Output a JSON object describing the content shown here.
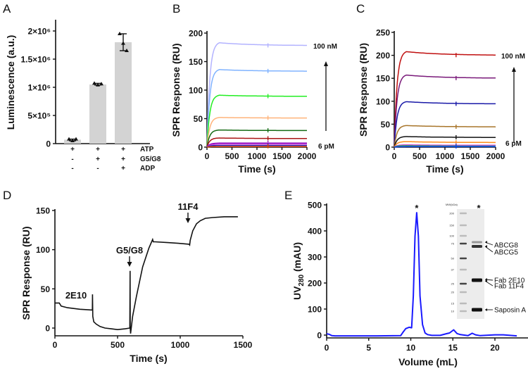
{
  "chart_data": [
    {
      "panel": "A",
      "type": "bar",
      "ylabel": "Luminescence (a.u.)",
      "ylim": [
        0,
        2200000
      ],
      "yticks": [
        0,
        500000,
        1000000,
        1500000,
        2000000
      ],
      "ytick_labels": [
        "0",
        "5×10⁵",
        "1×10⁶",
        "1.5×10⁶",
        "2×10⁶"
      ],
      "categories": [
        "ATP",
        "ATP + G5/G8",
        "ATP + G5/G8 + ADP"
      ],
      "values": [
        70000,
        1050000,
        1800000
      ],
      "points": [
        [
          80000,
          50000,
          80000
        ],
        [
          1070000,
          1040000,
          1060000
        ],
        [
          1950000,
          1780000,
          1650000
        ]
      ],
      "error": [
        [
          50000,
          80000
        ],
        [
          1040000,
          1070000
        ],
        [
          1650000,
          1950000
        ]
      ],
      "bar_color": "#d3d3d3",
      "condition_rows": [
        {
          "name": "ATP",
          "marks": [
            "+",
            "+",
            "+"
          ]
        },
        {
          "name": "G5/G8",
          "marks": [
            "-",
            "+",
            "+"
          ]
        },
        {
          "name": "ADP",
          "marks": [
            "-",
            "-",
            "+"
          ]
        }
      ]
    },
    {
      "panel": "B",
      "type": "line",
      "xlabel": "Time (s)",
      "ylabel": "SPR Response (RU)",
      "xlim": [
        0,
        2000
      ],
      "ylim": [
        0,
        200
      ],
      "xticks": [
        0,
        500,
        1000,
        1500,
        2000
      ],
      "yticks": [
        0,
        50,
        100,
        150,
        200
      ],
      "injection_end": 250,
      "series": [
        {
          "peak": 183,
          "end": 178,
          "color": "#b3b3ff"
        },
        {
          "peak": 136,
          "end": 133,
          "color": "#80b3ff"
        },
        {
          "peak": 91,
          "end": 89,
          "color": "#22ee22"
        },
        {
          "peak": 52,
          "end": 51,
          "color": "#ffb37a"
        },
        {
          "peak": 30,
          "end": 29,
          "color": "#156b15"
        },
        {
          "peak": 16,
          "end": 15,
          "color": "#aa1515"
        },
        {
          "peak": 7,
          "end": 7,
          "color": "#8a00b8"
        },
        {
          "peak": 5,
          "end": 5,
          "color": "#cc44dd"
        },
        {
          "peak": 3,
          "end": 3,
          "color": "#2b2bb0"
        },
        {
          "peak": 1,
          "end": 1,
          "color": "#dd4400"
        }
      ],
      "annotations": {
        "high": "100 nM",
        "low": "6 pM"
      }
    },
    {
      "panel": "C",
      "type": "line",
      "xlabel": "Time (s)",
      "ylabel": "SPR Response (RU)",
      "xlim": [
        0,
        2000
      ],
      "ylim": [
        0,
        250
      ],
      "xticks": [
        0,
        500,
        1000,
        1500,
        2000
      ],
      "yticks": [
        0,
        50,
        100,
        150,
        200,
        250
      ],
      "injection_end": 240,
      "series": [
        {
          "peak": 208,
          "end": 200,
          "color": "#c01010"
        },
        {
          "peak": 157,
          "end": 150,
          "color": "#7a1a7a"
        },
        {
          "peak": 99,
          "end": 94,
          "color": "#1a1aa8"
        },
        {
          "peak": 47,
          "end": 44,
          "color": "#a8752a"
        },
        {
          "peak": 23,
          "end": 21,
          "color": "#111111"
        },
        {
          "peak": 12,
          "end": 10,
          "color": "#ff8c1a"
        },
        {
          "peak": 5,
          "end": 4,
          "color": "#cc55dd"
        },
        {
          "peak": 3,
          "end": 2,
          "color": "#22aa44"
        },
        {
          "peak": 1,
          "end": 1,
          "color": "#1040ee"
        }
      ],
      "annotations": {
        "high": "100 nM",
        "low": "6 pM"
      }
    },
    {
      "panel": "D",
      "type": "line",
      "xlabel": "Time (s)",
      "ylabel": "SPR Response (RU)",
      "xlim": [
        0,
        1500
      ],
      "ylim": [
        -10,
        150
      ],
      "xticks": [
        0,
        500,
        1000,
        1500
      ],
      "yticks": [
        0,
        50,
        100,
        150
      ],
      "series": [
        {
          "color": "#111111",
          "x": [
            0,
            35,
            50,
            100,
            200,
            299,
            300,
            302,
            310,
            330,
            360,
            400,
            450,
            500,
            560,
            598,
            600,
            601,
            604,
            620,
            650,
            700,
            750,
            780,
            785,
            800,
            900,
            1000,
            1070,
            1075,
            1080,
            1100,
            1130,
            1160,
            1200,
            1260,
            1350,
            1460
          ],
          "y": [
            32,
            32,
            28,
            26,
            24,
            23,
            43,
            15,
            8,
            5,
            2,
            0,
            -1,
            -2,
            -1,
            0,
            73,
            0,
            -7,
            15,
            40,
            78,
            102,
            113,
            110,
            110,
            109,
            108,
            107,
            106,
            112,
            124,
            133,
            137,
            140,
            141,
            142,
            142
          ]
        }
      ],
      "annotations": [
        {
          "label": "2E10",
          "x": 150,
          "arrow": false
        },
        {
          "label": "G5/G8",
          "x": 600,
          "arrow": true
        },
        {
          "label": "11F4",
          "x": 1070,
          "arrow": true
        }
      ]
    },
    {
      "panel": "E",
      "type": "line",
      "xlabel": "Volume (mL)",
      "ylabel_main": "UV",
      "ylabel_sub": "280",
      "ylabel_rest": " (mAU)",
      "xlim": [
        0,
        24
      ],
      "ylim": [
        -5,
        500
      ],
      "xticks": [
        0,
        5,
        10,
        15,
        20
      ],
      "yticks": [
        0,
        100,
        200,
        300,
        400,
        500
      ],
      "series": [
        {
          "color": "#1a1aff",
          "x": [
            0,
            0.3,
            0.6,
            1,
            3,
            6,
            8.8,
            9.1,
            9.4,
            9.8,
            10.1,
            10.3,
            10.5,
            10.7,
            10.9,
            11.1,
            11.4,
            11.7,
            12,
            12.5,
            13.5,
            14.2,
            14.6,
            15.1,
            15.5,
            15.9,
            16.8,
            17.3,
            17.7,
            18.2,
            20,
            21,
            22.6
          ],
          "y": [
            5,
            3,
            -2,
            -3,
            -3,
            -3,
            -2,
            12,
            25,
            30,
            28,
            150,
            380,
            470,
            380,
            150,
            40,
            8,
            2,
            -1,
            -1,
            5,
            8,
            20,
            6,
            2,
            -2,
            7,
            1,
            -2,
            1,
            1,
            -3
          ]
        }
      ],
      "peak_marker": "*",
      "gel": {
        "mw_label": "MW(kDa)",
        "lane_marker": "*",
        "ladder": [
          "200",
          "150",
          "100",
          "75",
          "50",
          "37",
          "25",
          "20",
          "15",
          "10"
        ],
        "bands": [
          "ABCG8",
          "ABCG5",
          "Fab 2E10",
          "Fab 11F4",
          "Saposin A"
        ]
      }
    }
  ],
  "panel_labels": [
    "A",
    "B",
    "C",
    "D",
    "E"
  ]
}
